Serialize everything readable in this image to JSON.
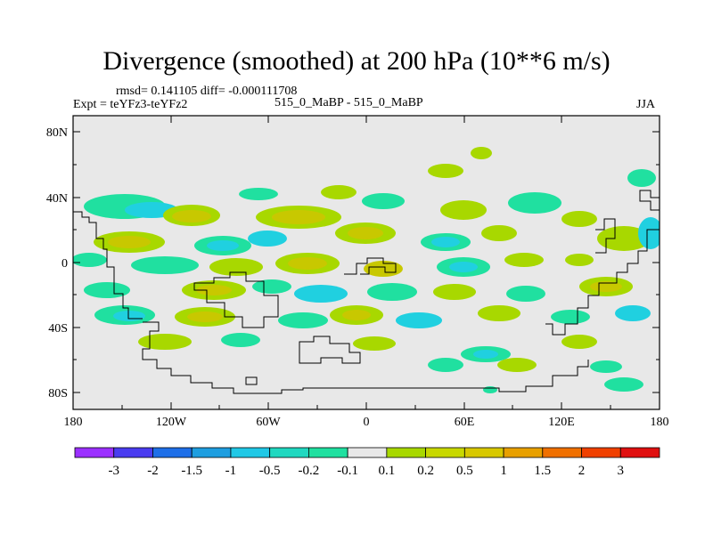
{
  "title": "Divergence (smoothed) at 200 hPa (10**6 m/s)",
  "stats": "rmsd= 0.141105 diff= -0.000111708",
  "experiment": "Expt = teYFz3-teYFz2",
  "comparison": "515_0_MaBP - 515_0_MaBP",
  "season": "JJA",
  "y_ticks": [
    "80N",
    "40N",
    "0",
    "40S",
    "80S"
  ],
  "x_ticks": [
    "180",
    "120W",
    "60W",
    "0",
    "60E",
    "120E",
    "180"
  ],
  "colorbar": {
    "labels": [
      "-3",
      "-2",
      "-1.5",
      "-1",
      "-0.5",
      "-0.2",
      "-0.1",
      "0.1",
      "0.2",
      "0.5",
      "1",
      "1.5",
      "2",
      "3"
    ],
    "colors": [
      "#9b30ff",
      "#4a3cf0",
      "#1e6fe8",
      "#1e9ee0",
      "#20c8e6",
      "#20d8c0",
      "#20e0a0",
      "#e8e8e8",
      "#a8d800",
      "#c8d800",
      "#d8c800",
      "#e8a000",
      "#f07000",
      "#f04000",
      "#e01010"
    ]
  },
  "colors": {
    "background": "#e8e8e8",
    "neg_light": "#20e0a0",
    "neg_medium": "#20d0e0",
    "pos_light": "#a8d800",
    "pos_medium": "#c8c800"
  }
}
